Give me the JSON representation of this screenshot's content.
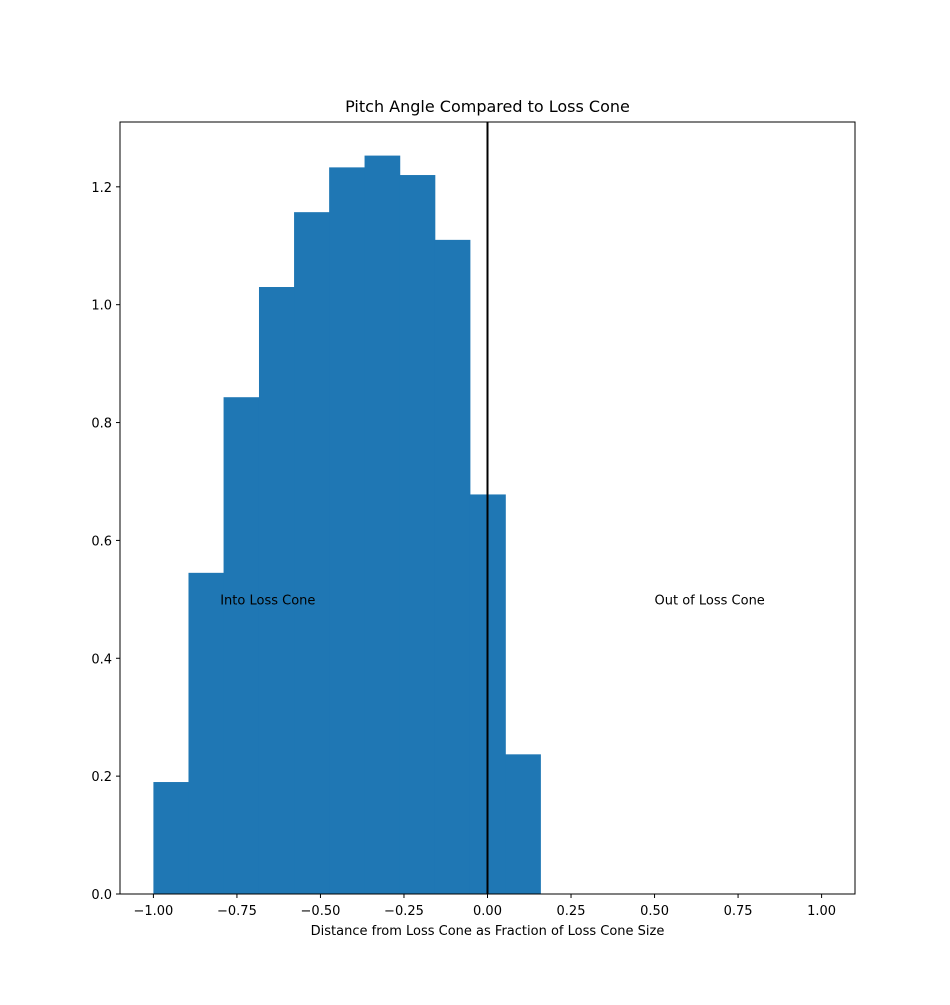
{
  "chart_data": {
    "type": "histogram",
    "title": "Pitch Angle Compared to Loss Cone",
    "xlabel": "Distance from Loss Cone as Fraction of Loss Cone Size",
    "ylabel": "",
    "xlim": [
      -1.1,
      1.1
    ],
    "ylim": [
      0,
      1.31
    ],
    "x_ticks": [
      -1.0,
      -0.75,
      -0.5,
      -0.25,
      0.0,
      0.25,
      0.5,
      0.75,
      1.0
    ],
    "x_tick_labels": [
      "−1.00",
      "−0.75",
      "−0.50",
      "−0.25",
      "0.00",
      "0.25",
      "0.50",
      "0.75",
      "1.00"
    ],
    "y_ticks": [
      0.0,
      0.2,
      0.4,
      0.6,
      0.8,
      1.0,
      1.2
    ],
    "y_tick_labels": [
      "0.0",
      "0.2",
      "0.4",
      "0.6",
      "0.8",
      "1.0",
      "1.2"
    ],
    "grid": false,
    "bar_color": "#1f77b4",
    "bins": [
      {
        "x0": -1.0,
        "x1": -0.895,
        "value": 0.19
      },
      {
        "x0": -0.895,
        "x1": -0.79,
        "value": 0.545
      },
      {
        "x0": -0.79,
        "x1": -0.684,
        "value": 0.843
      },
      {
        "x0": -0.684,
        "x1": -0.579,
        "value": 1.03
      },
      {
        "x0": -0.579,
        "x1": -0.474,
        "value": 1.157
      },
      {
        "x0": -0.474,
        "x1": -0.368,
        "value": 1.233
      },
      {
        "x0": -0.368,
        "x1": -0.263,
        "value": 1.253
      },
      {
        "x0": -0.263,
        "x1": -0.158,
        "value": 1.22
      },
      {
        "x0": -0.158,
        "x1": -0.053,
        "value": 1.11
      },
      {
        "x0": -0.053,
        "x1": 0.053,
        "value": 0.678
      },
      {
        "x0": 0.053,
        "x1": 0.158,
        "value": 0.237
      }
    ],
    "vline": {
      "x": 0.0,
      "color": "#000000"
    },
    "annotations": [
      {
        "text": "Into Loss Cone",
        "x": -0.8,
        "y": 0.5
      },
      {
        "text": "Out of Loss Cone",
        "x": 0.5,
        "y": 0.5
      }
    ]
  }
}
